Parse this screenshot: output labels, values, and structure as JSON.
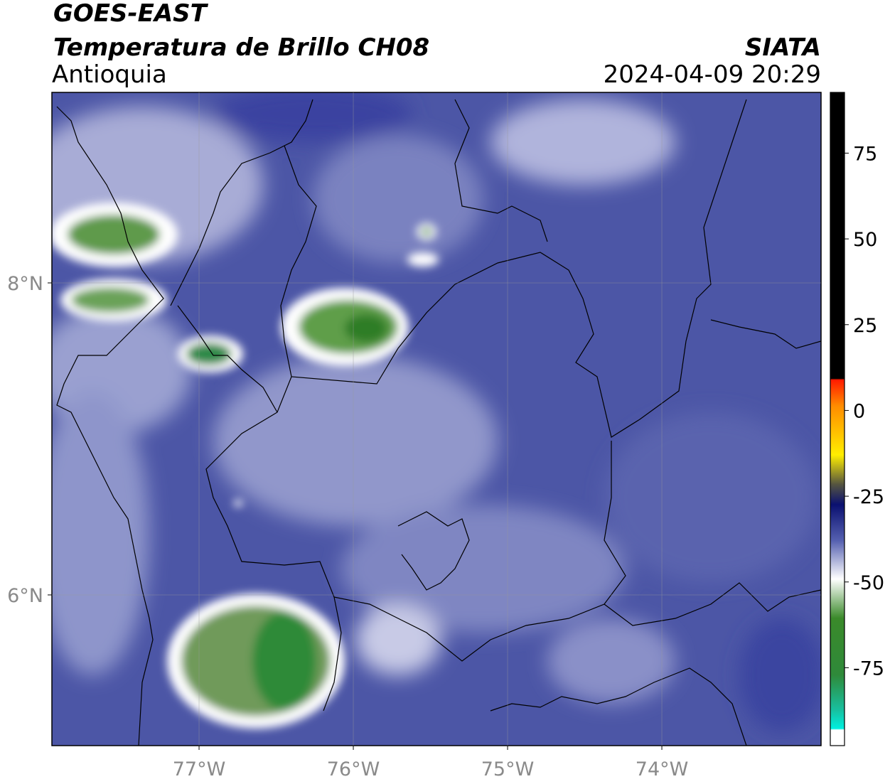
{
  "title": "GOES-EAST",
  "subtitle": "Temperatura de Brillo CH08",
  "region": "Antioquia",
  "source": "SIATA",
  "datetime": "2024-04-09 20:29",
  "map": {
    "lon_lim": [
      -77.954,
      -72.968
    ],
    "lat_lim": [
      5.034,
      9.221
    ],
    "lon_ticks": [
      {
        "value": -77,
        "label": "77°W"
      },
      {
        "value": -76,
        "label": "76°W"
      },
      {
        "value": -75,
        "label": "75°W"
      },
      {
        "value": -74,
        "label": "74°W"
      }
    ],
    "lat_ticks": [
      {
        "value": 8,
        "label": "8°N"
      },
      {
        "value": 6,
        "label": "6°N"
      }
    ],
    "grid": true
  },
  "colorbar": {
    "lim": [
      -97.7,
      92.7
    ],
    "ticks": [
      75,
      50,
      25,
      0,
      -25,
      -50,
      -75
    ]
  }
}
